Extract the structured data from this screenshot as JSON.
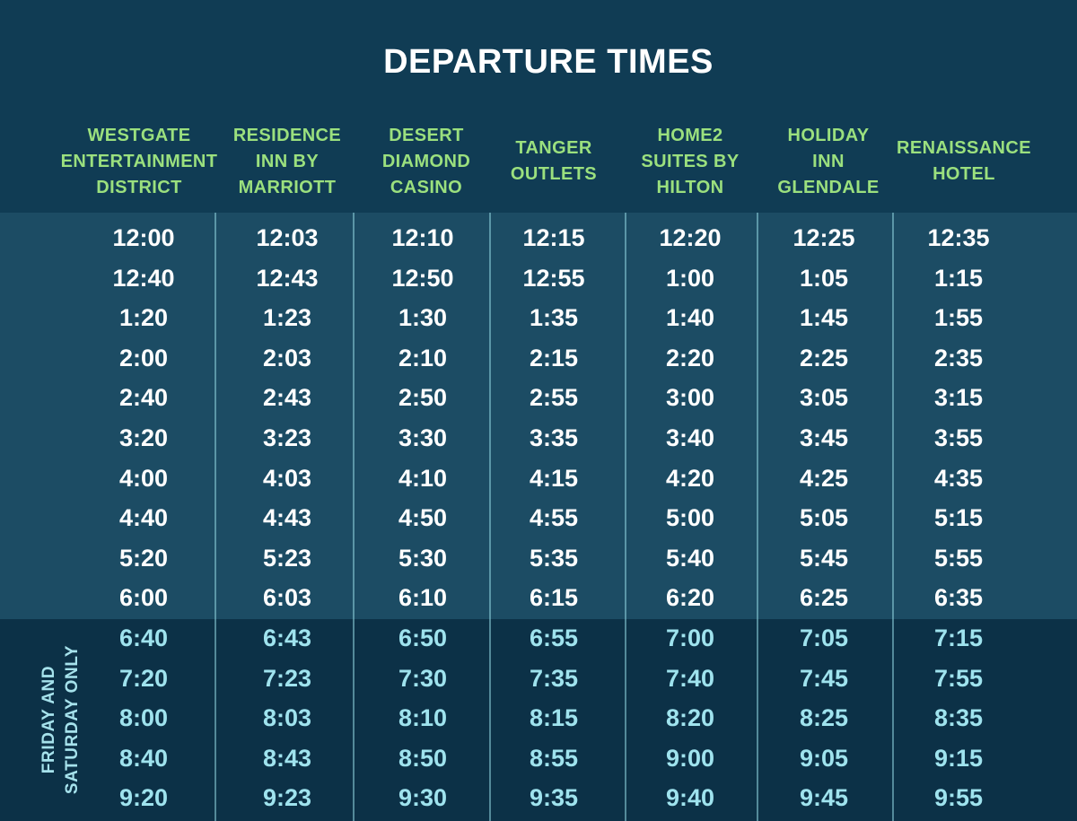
{
  "title": "DEPARTURE TIMES",
  "colors": {
    "header_bg": "#103c54",
    "body_bg": "#1c4c64",
    "weekend_bg": "#0c3147",
    "header_text": "#9be07e",
    "time_text": "#ffffff",
    "weekend_text": "#9fe3ee"
  },
  "columns": [
    "WESTGATE\nENTERTAINMENT\nDISTRICT",
    "RESIDENCE\nINN BY\nMARRIOTT",
    "DESERT\nDIAMOND\nCASINO",
    "TANGER\nOUTLETS",
    "HOME2\nSUITES BY\nHILTON",
    "HOLIDAY\nINN\nGLENDALE",
    "RENAISSANCE\nHOTEL"
  ],
  "weekend_label": "FRIDAY AND\nSATURDAY ONLY",
  "rows": [
    [
      "12:00",
      "12:03",
      "12:10",
      "12:15",
      "12:20",
      "12:25",
      "12:35"
    ],
    [
      "12:40",
      "12:43",
      "12:50",
      "12:55",
      "1:00",
      "1:05",
      "1:15"
    ],
    [
      "1:20",
      "1:23",
      "1:30",
      "1:35",
      "1:40",
      "1:45",
      "1:55"
    ],
    [
      "2:00",
      "2:03",
      "2:10",
      "2:15",
      "2:20",
      "2:25",
      "2:35"
    ],
    [
      "2:40",
      "2:43",
      "2:50",
      "2:55",
      "3:00",
      "3:05",
      "3:15"
    ],
    [
      "3:20",
      "3:23",
      "3:30",
      "3:35",
      "3:40",
      "3:45",
      "3:55"
    ],
    [
      "4:00",
      "4:03",
      "4:10",
      "4:15",
      "4:20",
      "4:25",
      "4:35"
    ],
    [
      "4:40",
      "4:43",
      "4:50",
      "4:55",
      "5:00",
      "5:05",
      "5:15"
    ],
    [
      "5:20",
      "5:23",
      "5:30",
      "5:35",
      "5:40",
      "5:45",
      "5:55"
    ],
    [
      "6:00",
      "6:03",
      "6:10",
      "6:15",
      "6:20",
      "6:25",
      "6:35"
    ]
  ],
  "weekend_rows": [
    [
      "6:40",
      "6:43",
      "6:50",
      "6:55",
      "7:00",
      "7:05",
      "7:15"
    ],
    [
      "7:20",
      "7:23",
      "7:30",
      "7:35",
      "7:40",
      "7:45",
      "7:55"
    ],
    [
      "8:00",
      "8:03",
      "8:10",
      "8:15",
      "8:20",
      "8:25",
      "8:35"
    ],
    [
      "8:40",
      "8:43",
      "8:50",
      "8:55",
      "9:00",
      "9:05",
      "9:15"
    ],
    [
      "9:20",
      "9:23",
      "9:30",
      "9:35",
      "9:40",
      "9:45",
      "9:55"
    ]
  ]
}
